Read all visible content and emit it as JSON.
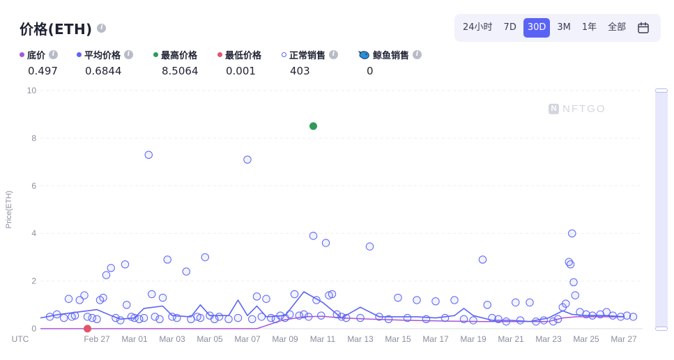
{
  "header": {
    "title": "价格(ETH)"
  },
  "range": {
    "options": [
      "24小时",
      "7D",
      "30D",
      "3M",
      "1年",
      "全部"
    ],
    "active": "30D"
  },
  "legend": [
    {
      "label": "底价",
      "value": "0.497",
      "color": "#a855d8",
      "info": true,
      "style": "filled"
    },
    {
      "label": "平均价格",
      "value": "0.6844",
      "color": "#5b63f5",
      "info": true,
      "style": "filled"
    },
    {
      "label": "最高价格",
      "value": "8.5064",
      "color": "#2e9a5a",
      "info": false,
      "style": "filled"
    },
    {
      "label": "最低价格",
      "value": "0.001",
      "color": "#e0556a",
      "info": false,
      "style": "filled"
    },
    {
      "label": "正常销售",
      "value": "403",
      "color": "#5b63f5",
      "info": true,
      "style": "hollow"
    },
    {
      "label": "鲸鱼销售",
      "value": "0",
      "color": "#2a8fd6",
      "info": true,
      "style": "whale"
    }
  ],
  "watermark": "NFTGO",
  "chart_data": {
    "type": "scatter",
    "ylabel": "Price(ETH)",
    "timezone_label": "UTC",
    "ylim": [
      0,
      10
    ],
    "yticks": [
      0,
      2,
      4,
      6,
      8,
      10
    ],
    "xlim": [
      "2023-02-24T12:00",
      "2023-03-28T12:00"
    ],
    "xticks": [
      {
        "date": "2023-02-27",
        "label": "Feb 27"
      },
      {
        "date": "2023-03-01",
        "label": "Mar 01"
      },
      {
        "date": "2023-03-03",
        "label": "Mar 03"
      },
      {
        "date": "2023-03-05",
        "label": "Mar 05"
      },
      {
        "date": "2023-03-07",
        "label": "Mar 07"
      },
      {
        "date": "2023-03-09",
        "label": "Mar 09"
      },
      {
        "date": "2023-03-11",
        "label": "Mar 11"
      },
      {
        "date": "2023-03-13",
        "label": "Mar 13"
      },
      {
        "date": "2023-03-15",
        "label": "Mar 15"
      },
      {
        "date": "2023-03-17",
        "label": "Mar 17"
      },
      {
        "date": "2023-03-19",
        "label": "Mar 19"
      },
      {
        "date": "2023-03-21",
        "label": "Mar 21"
      },
      {
        "date": "2023-03-23",
        "label": "Mar 23"
      },
      {
        "date": "2023-03-25",
        "label": "Mar 25"
      },
      {
        "date": "2023-03-27",
        "label": "Mar 27"
      }
    ],
    "grid": true,
    "series": [
      {
        "name": "底价",
        "kind": "line",
        "color": "#a855d8",
        "points": [
          [
            "2023-02-24T12:00",
            0.0
          ],
          [
            "2023-03-08T00:00",
            0.0
          ],
          [
            "2023-03-09T08:00",
            0.35
          ],
          [
            "2023-03-10T12:00",
            0.5
          ],
          [
            "2023-03-11T12:00",
            0.52
          ],
          [
            "2023-03-12T12:00",
            0.45
          ],
          [
            "2023-03-14T00:00",
            0.4
          ],
          [
            "2023-03-16T00:00",
            0.35
          ],
          [
            "2023-03-18T00:00",
            0.32
          ],
          [
            "2023-03-20T00:00",
            0.3
          ],
          [
            "2023-03-22T00:00",
            0.3
          ],
          [
            "2023-03-23T12:00",
            0.3
          ],
          [
            "2023-03-24T06:00",
            0.45
          ],
          [
            "2023-03-25T00:00",
            0.5
          ],
          [
            "2023-03-26T00:00",
            0.5
          ],
          [
            "2023-03-27T12:00",
            0.497
          ]
        ]
      },
      {
        "name": "平均价格",
        "kind": "line",
        "color": "#5b63f5",
        "points": [
          [
            "2023-02-24T12:00",
            0.45
          ],
          [
            "2023-02-25T12:00",
            0.6
          ],
          [
            "2023-02-26T12:00",
            0.7
          ],
          [
            "2023-02-27T12:00",
            0.8
          ],
          [
            "2023-02-28T06:00",
            0.55
          ],
          [
            "2023-02-28T18:00",
            0.4
          ],
          [
            "2023-03-01T12:00",
            0.45
          ],
          [
            "2023-03-02T00:00",
            0.85
          ],
          [
            "2023-03-03T00:00",
            0.95
          ],
          [
            "2023-03-03T12:00",
            0.55
          ],
          [
            "2023-03-04T12:00",
            0.5
          ],
          [
            "2023-03-05T00:00",
            1.0
          ],
          [
            "2023-03-05T12:00",
            0.55
          ],
          [
            "2023-03-06T12:00",
            0.55
          ],
          [
            "2023-03-07T00:00",
            1.2
          ],
          [
            "2023-03-07T12:00",
            0.55
          ],
          [
            "2023-03-08T00:00",
            0.95
          ],
          [
            "2023-03-08T12:00",
            0.5
          ],
          [
            "2023-03-09T12:00",
            0.55
          ],
          [
            "2023-03-10T12:00",
            1.55
          ],
          [
            "2023-03-11T12:00",
            1.1
          ],
          [
            "2023-03-12T12:00",
            0.45
          ],
          [
            "2023-03-13T12:00",
            0.9
          ],
          [
            "2023-03-14T12:00",
            0.5
          ],
          [
            "2023-03-15T12:00",
            0.5
          ],
          [
            "2023-03-16T12:00",
            0.5
          ],
          [
            "2023-03-17T12:00",
            0.45
          ],
          [
            "2023-03-18T12:00",
            0.55
          ],
          [
            "2023-03-19T00:00",
            0.85
          ],
          [
            "2023-03-19T12:00",
            0.55
          ],
          [
            "2023-03-20T12:00",
            0.35
          ],
          [
            "2023-03-21T12:00",
            0.35
          ],
          [
            "2023-03-22T12:00",
            0.3
          ],
          [
            "2023-03-23T12:00",
            0.45
          ],
          [
            "2023-03-24T06:00",
            0.75
          ],
          [
            "2023-03-24T18:00",
            0.6
          ],
          [
            "2023-03-25T12:00",
            0.55
          ],
          [
            "2023-03-26T12:00",
            0.55
          ],
          [
            "2023-03-27T12:00",
            0.5
          ]
        ]
      },
      {
        "name": "最高价格",
        "kind": "point",
        "color": "#2e9a5a",
        "points": [
          [
            "2023-03-11T00:00",
            8.5064
          ]
        ]
      },
      {
        "name": "最低价格",
        "kind": "point",
        "color": "#e0556a",
        "points": [
          [
            "2023-02-27T00:00",
            0.001
          ]
        ]
      },
      {
        "name": "正常销售",
        "kind": "hollow",
        "color": "#5b63f5",
        "points": [
          [
            "2023-02-25T00:00",
            0.5
          ],
          [
            "2023-02-25T09:00",
            0.6
          ],
          [
            "2023-02-25T18:00",
            0.45
          ],
          [
            "2023-02-26T00:00",
            1.25
          ],
          [
            "2023-02-26T04:00",
            0.5
          ],
          [
            "2023-02-26T08:00",
            0.55
          ],
          [
            "2023-02-26T14:00",
            1.2
          ],
          [
            "2023-02-26T20:00",
            1.4
          ],
          [
            "2023-02-27T00:00",
            0.5
          ],
          [
            "2023-02-27T06:00",
            0.45
          ],
          [
            "2023-02-27T12:00",
            0.4
          ],
          [
            "2023-02-27T16:00",
            1.2
          ],
          [
            "2023-02-27T20:00",
            1.3
          ],
          [
            "2023-02-28T00:00",
            2.25
          ],
          [
            "2023-02-28T06:00",
            2.55
          ],
          [
            "2023-02-28T12:00",
            0.45
          ],
          [
            "2023-02-28T18:00",
            0.35
          ],
          [
            "2023-03-01T00:00",
            2.7
          ],
          [
            "2023-03-01T02:00",
            1.0
          ],
          [
            "2023-03-01T08:00",
            0.5
          ],
          [
            "2023-03-01T12:00",
            0.45
          ],
          [
            "2023-03-01T18:00",
            0.4
          ],
          [
            "2023-03-02T00:00",
            0.45
          ],
          [
            "2023-03-02T06:00",
            7.3
          ],
          [
            "2023-03-02T10:00",
            1.45
          ],
          [
            "2023-03-02T14:00",
            0.5
          ],
          [
            "2023-03-02T20:00",
            0.4
          ],
          [
            "2023-03-03T00:00",
            1.3
          ],
          [
            "2023-03-03T06:00",
            2.9
          ],
          [
            "2023-03-03T12:00",
            0.5
          ],
          [
            "2023-03-03T18:00",
            0.45
          ],
          [
            "2023-03-04T06:00",
            2.4
          ],
          [
            "2023-03-04T12:00",
            0.4
          ],
          [
            "2023-03-04T20:00",
            0.5
          ],
          [
            "2023-03-05T00:00",
            0.45
          ],
          [
            "2023-03-05T06:00",
            3.0
          ],
          [
            "2023-03-05T12:00",
            0.55
          ],
          [
            "2023-03-05T18:00",
            0.4
          ],
          [
            "2023-03-06T00:00",
            0.5
          ],
          [
            "2023-03-06T12:00",
            0.4
          ],
          [
            "2023-03-07T00:00",
            0.45
          ],
          [
            "2023-03-07T12:00",
            7.1
          ],
          [
            "2023-03-07T18:00",
            0.4
          ],
          [
            "2023-03-08T00:00",
            1.35
          ],
          [
            "2023-03-08T06:00",
            0.5
          ],
          [
            "2023-03-08T12:00",
            1.25
          ],
          [
            "2023-03-08T18:00",
            0.45
          ],
          [
            "2023-03-09T00:00",
            0.4
          ],
          [
            "2023-03-09T06:00",
            0.55
          ],
          [
            "2023-03-09T12:00",
            0.45
          ],
          [
            "2023-03-09T18:00",
            0.6
          ],
          [
            "2023-03-10T00:00",
            1.45
          ],
          [
            "2023-03-10T06:00",
            0.55
          ],
          [
            "2023-03-10T12:00",
            0.6
          ],
          [
            "2023-03-10T18:00",
            0.5
          ],
          [
            "2023-03-11T00:00",
            3.9
          ],
          [
            "2023-03-11T04:00",
            1.2
          ],
          [
            "2023-03-11T10:00",
            0.55
          ],
          [
            "2023-03-11T16:00",
            3.6
          ],
          [
            "2023-03-11T20:00",
            1.4
          ],
          [
            "2023-03-12T00:00",
            1.45
          ],
          [
            "2023-03-12T06:00",
            0.6
          ],
          [
            "2023-03-12T12:00",
            0.5
          ],
          [
            "2023-03-12T18:00",
            0.45
          ],
          [
            "2023-03-13T12:00",
            0.45
          ],
          [
            "2023-03-14T00:00",
            3.45
          ],
          [
            "2023-03-14T12:00",
            0.5
          ],
          [
            "2023-03-15T00:00",
            0.4
          ],
          [
            "2023-03-15T12:00",
            1.3
          ],
          [
            "2023-03-16T00:00",
            0.45
          ],
          [
            "2023-03-16T12:00",
            1.2
          ],
          [
            "2023-03-17T00:00",
            0.4
          ],
          [
            "2023-03-17T12:00",
            1.15
          ],
          [
            "2023-03-18T00:00",
            0.45
          ],
          [
            "2023-03-18T12:00",
            1.2
          ],
          [
            "2023-03-19T00:00",
            0.4
          ],
          [
            "2023-03-19T12:00",
            0.35
          ],
          [
            "2023-03-20T00:00",
            2.9
          ],
          [
            "2023-03-20T06:00",
            1.0
          ],
          [
            "2023-03-20T12:00",
            0.45
          ],
          [
            "2023-03-20T20:00",
            0.4
          ],
          [
            "2023-03-21T06:00",
            0.3
          ],
          [
            "2023-03-21T18:00",
            1.1
          ],
          [
            "2023-03-22T00:00",
            0.35
          ],
          [
            "2023-03-22T12:00",
            1.1
          ],
          [
            "2023-03-22T20:00",
            0.3
          ],
          [
            "2023-03-23T06:00",
            0.35
          ],
          [
            "2023-03-23T18:00",
            0.3
          ],
          [
            "2023-03-24T00:00",
            0.4
          ],
          [
            "2023-03-24T06:00",
            0.9
          ],
          [
            "2023-03-24T10:00",
            1.05
          ],
          [
            "2023-03-24T14:00",
            2.8
          ],
          [
            "2023-03-24T16:00",
            2.7
          ],
          [
            "2023-03-24T18:00",
            4.0
          ],
          [
            "2023-03-24T20:00",
            1.95
          ],
          [
            "2023-03-24T22:00",
            1.4
          ],
          [
            "2023-03-25T04:00",
            0.7
          ],
          [
            "2023-03-25T12:00",
            0.6
          ],
          [
            "2023-03-25T20:00",
            0.55
          ],
          [
            "2023-03-26T06:00",
            0.6
          ],
          [
            "2023-03-26T14:00",
            0.7
          ],
          [
            "2023-03-26T22:00",
            0.55
          ],
          [
            "2023-03-27T08:00",
            0.5
          ],
          [
            "2023-03-27T16:00",
            0.55
          ],
          [
            "2023-03-28T00:00",
            0.5
          ]
        ]
      }
    ]
  }
}
